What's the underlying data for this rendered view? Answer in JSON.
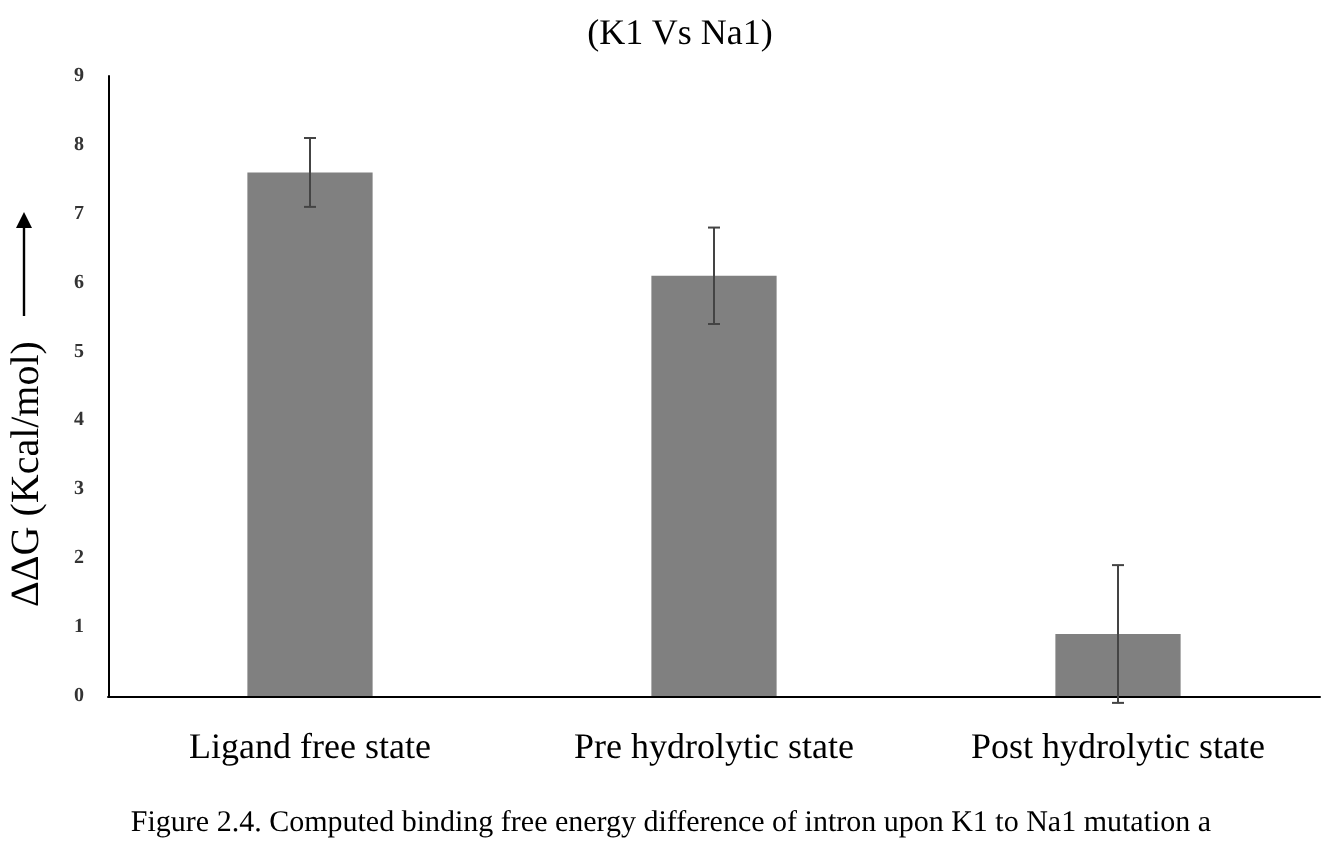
{
  "chart_data": {
    "type": "bar",
    "title": "(K1 Vs Na1)",
    "ylabel": "ΔΔG (Kcal/mol)",
    "categories": [
      "Ligand free state",
      "Pre hydrolytic state",
      "Post hydrolytic state"
    ],
    "values": [
      7.6,
      6.1,
      0.9
    ],
    "errors": [
      0.5,
      0.7,
      1.0
    ],
    "color": "#808080",
    "ylim": [
      0,
      9
    ],
    "yticks": [
      0,
      1,
      2,
      3,
      4,
      5,
      6,
      7,
      8,
      9
    ],
    "grid": false,
    "annotations": [
      "Figure 2.4. Computed binding free energy difference of intron upon K1 to Na1 mutation a"
    ]
  }
}
